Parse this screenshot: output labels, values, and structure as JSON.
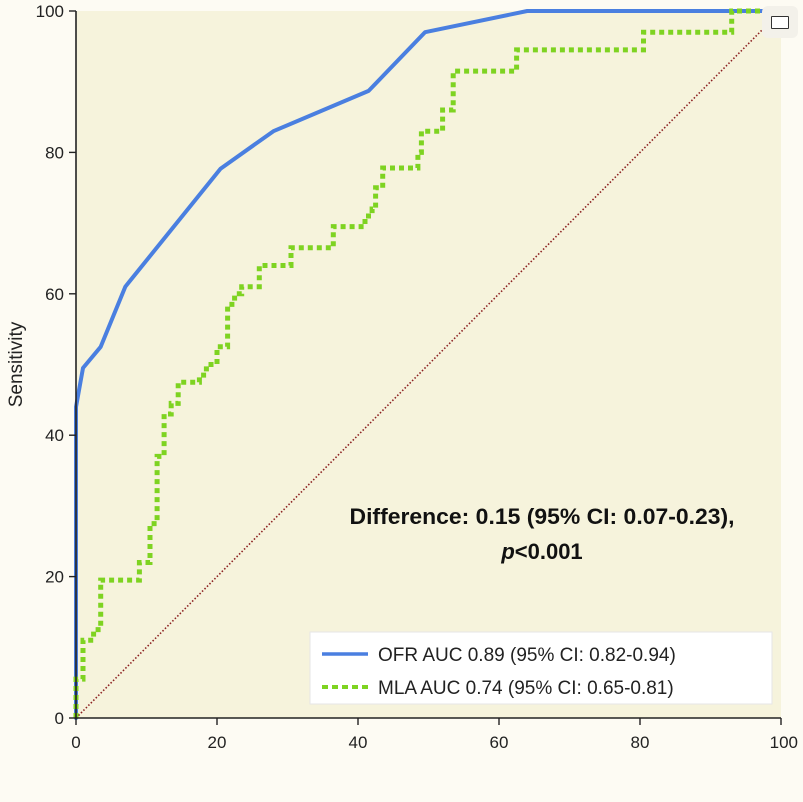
{
  "chart_data": {
    "type": "line",
    "title": "",
    "xlabel": "",
    "ylabel": "Sensitivity",
    "xlim": [
      0,
      100
    ],
    "ylim": [
      0,
      100
    ],
    "x_ticks": [
      "0",
      "20",
      "40",
      "60",
      "80",
      "100"
    ],
    "y_ticks": [
      "0",
      "20",
      "40",
      "60",
      "80",
      "100"
    ],
    "grid": false,
    "background_color": "#f6f3dc",
    "reference_line": {
      "x": [
        0,
        100
      ],
      "y": [
        0,
        100
      ],
      "color": "#8b2020",
      "style": "dotted"
    },
    "annotation": {
      "line1": "Difference: 0.15 (95% CI: 0.07-0.23),",
      "line2_italic": "p",
      "line2_rest": "<0.001"
    },
    "legend_position": "bottom-right",
    "series": [
      {
        "name": "OFR AUC 0.89 (95% CI: 0.82-0.94)",
        "color": "#4a7fe0",
        "style": "solid",
        "step": false,
        "points": [
          [
            0,
            0
          ],
          [
            0,
            44
          ],
          [
            1,
            49.5
          ],
          [
            3.5,
            52.5
          ],
          [
            7,
            61
          ],
          [
            20.5,
            77.7
          ],
          [
            28,
            83
          ],
          [
            41.5,
            88.7
          ],
          [
            49.5,
            97
          ],
          [
            64,
            100
          ],
          [
            100,
            100
          ]
        ]
      },
      {
        "name": "MLA AUC 0.74 (95% CI: 0.65-0.81)",
        "color": "#7ed321",
        "style": "dotted",
        "step": true,
        "points": [
          [
            0,
            0
          ],
          [
            0,
            5.5
          ],
          [
            1,
            5.5
          ],
          [
            1,
            11
          ],
          [
            2.5,
            11
          ],
          [
            2.5,
            12.5
          ],
          [
            3.5,
            12.5
          ],
          [
            3.5,
            19.5
          ],
          [
            9,
            19.5
          ],
          [
            9,
            22
          ],
          [
            10.5,
            22
          ],
          [
            10.5,
            27.5
          ],
          [
            11.5,
            27.5
          ],
          [
            11.5,
            37
          ],
          [
            12.5,
            37
          ],
          [
            12.5,
            43
          ],
          [
            13.5,
            43
          ],
          [
            13.5,
            44.5
          ],
          [
            14.5,
            44.5
          ],
          [
            14.5,
            47.5
          ],
          [
            17.5,
            47.5
          ],
          [
            17.5,
            48.5
          ],
          [
            18.5,
            48.5
          ],
          [
            18.5,
            50
          ],
          [
            20,
            50
          ],
          [
            20,
            52.5
          ],
          [
            21.5,
            52.5
          ],
          [
            21.5,
            58.5
          ],
          [
            22.5,
            58.5
          ],
          [
            22.5,
            60
          ],
          [
            23.5,
            60
          ],
          [
            23.5,
            61
          ],
          [
            26,
            61
          ],
          [
            26,
            64
          ],
          [
            30.5,
            64
          ],
          [
            30.5,
            66.5
          ],
          [
            36.5,
            66.5
          ],
          [
            36.5,
            69.5
          ],
          [
            41,
            69.5
          ],
          [
            41,
            71
          ],
          [
            42,
            71
          ],
          [
            42,
            72
          ],
          [
            42.5,
            72
          ],
          [
            42.5,
            75
          ],
          [
            43.5,
            75
          ],
          [
            43.5,
            77.8
          ],
          [
            48.5,
            77.8
          ],
          [
            48.5,
            80
          ],
          [
            49,
            80
          ],
          [
            49,
            83
          ],
          [
            52,
            83
          ],
          [
            52,
            86
          ],
          [
            53.5,
            86
          ],
          [
            53.5,
            91.5
          ],
          [
            62.5,
            91.5
          ],
          [
            62.5,
            94.5
          ],
          [
            80.5,
            94.5
          ],
          [
            80.5,
            97
          ],
          [
            93,
            97
          ],
          [
            93,
            100
          ],
          [
            100,
            100
          ]
        ]
      }
    ]
  },
  "ui": {
    "expand_button_icon": "fullscreen-icon"
  }
}
